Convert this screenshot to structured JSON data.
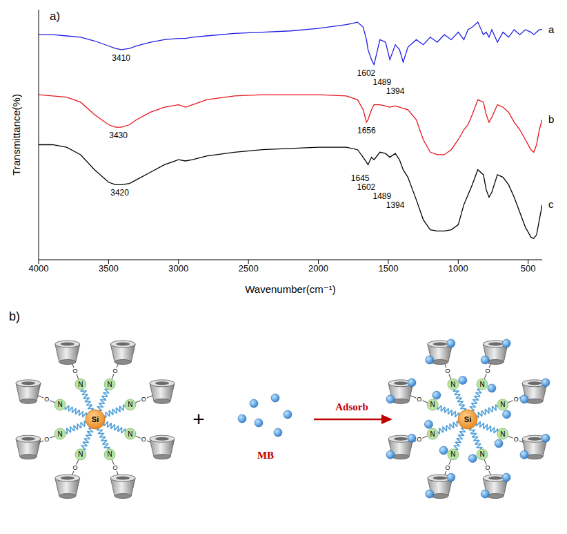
{
  "chart_data": {
    "type": "line",
    "x_label": "Wavenumber(cm⁻¹)",
    "y_label": "Transmittance(%)",
    "x": [
      4000,
      3900,
      3800,
      3700,
      3600,
      3500,
      3450,
      3410,
      3350,
      3300,
      3200,
      3100,
      3000,
      2950,
      2900,
      2800,
      2600,
      2400,
      2200,
      2000,
      1800,
      1720,
      1680,
      1656,
      1645,
      1620,
      1602,
      1560,
      1520,
      1489,
      1450,
      1420,
      1394,
      1360,
      1300,
      1250,
      1200,
      1150,
      1100,
      1050,
      1000,
      960,
      930,
      900,
      860,
      820,
      800,
      780,
      760,
      720,
      680,
      640,
      600,
      560,
      520,
      480,
      460,
      440,
      420,
      400
    ],
    "xlim": [
      4000,
      400
    ],
    "xticks": [
      4000,
      3500,
      3000,
      2500,
      2000,
      1500,
      1000,
      500
    ],
    "ylim": [
      0,
      100
    ],
    "tick_labels": "x",
    "grid": false,
    "series": [
      {
        "name": "a",
        "color": "#1f1fe6",
        "values": [
          90,
          90,
          89.5,
          89,
          87.5,
          85.5,
          84.5,
          84,
          84.5,
          85.5,
          87,
          88,
          88.5,
          88.5,
          89,
          89.5,
          90.5,
          91,
          91.5,
          92.5,
          94,
          95,
          93,
          88,
          84,
          80,
          78,
          88,
          87,
          80,
          86,
          84,
          79,
          85,
          88,
          86,
          89,
          87,
          90,
          88,
          91,
          88,
          92,
          93,
          95,
          90,
          91,
          89,
          92,
          87,
          91,
          89,
          92,
          90,
          92,
          91,
          90,
          91,
          92,
          92
        ],
        "peaks": [
          3410,
          1602,
          1489,
          1394
        ]
      },
      {
        "name": "b",
        "color": "#e8141c",
        "values": [
          66,
          65.5,
          65,
          63,
          58,
          54,
          53,
          53,
          54,
          56,
          59,
          61,
          62,
          61,
          62,
          64,
          65.5,
          66,
          66,
          66,
          65.5,
          64,
          60,
          55,
          56,
          60,
          62,
          62,
          61.5,
          61,
          61.5,
          61,
          60.5,
          60,
          56,
          48,
          43,
          42,
          42,
          44,
          48,
          52,
          54,
          58,
          64,
          63,
          58,
          55,
          57,
          62,
          61,
          59,
          55,
          52,
          48,
          44,
          43,
          46,
          52,
          56
        ],
        "peaks": [
          3430,
          1656
        ]
      },
      {
        "name": "c",
        "color": "#000000",
        "values": [
          46,
          46,
          45,
          42,
          36,
          31,
          30,
          30,
          30.5,
          32,
          35,
          38,
          40,
          39.5,
          40,
          41.5,
          43,
          44,
          44.5,
          45,
          45,
          44,
          41,
          39,
          38,
          41,
          40,
          43,
          42.5,
          41,
          42.5,
          40,
          36,
          33,
          24,
          16,
          12,
          11.5,
          11.5,
          12,
          14,
          22,
          26,
          30,
          36,
          34,
          28,
          25,
          27,
          34,
          33,
          30,
          25,
          19,
          13,
          9,
          8.5,
          10,
          16,
          22
        ],
        "peaks": [
          3420,
          1645,
          1602,
          1489,
          1394
        ]
      }
    ]
  },
  "panel_labels": [
    "a)",
    "b)"
  ],
  "diagram": {
    "core": "Si",
    "linker_labels": [
      "N",
      "N",
      "N",
      "N",
      "N",
      "N",
      "N",
      "N"
    ],
    "bridge_label": "O",
    "operator": "+",
    "adsorbate": "MB",
    "arrow_label": "Adsorb"
  }
}
